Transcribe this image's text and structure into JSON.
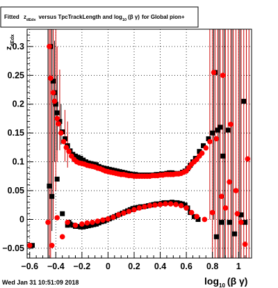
{
  "chart_data": {
    "type": "scatter",
    "title": {
      "text": "Fitted",
      "z_main": "z",
      "z_sub": "dEdx",
      "mid": "versus TpcTrackLength and log",
      "log_sub": "10",
      "paren": "(β γ)",
      "tail": "for Global pion+"
    },
    "xlabel": {
      "main": "log",
      "sub": "10",
      "paren": "(β γ)"
    },
    "ylabel": {
      "main": "z",
      "sub": "dEdx"
    },
    "timestamp": "Wed Jan 31 10:51:09 2018",
    "xlim": [
      -0.62,
      1.1
    ],
    "ylim": [
      -0.067,
      0.33
    ],
    "xticks": [
      -0.6,
      -0.4,
      -0.2,
      0,
      0.2,
      0.4,
      0.6,
      0.8,
      1
    ],
    "xtick_labels": [
      "−0.6",
      "−0.4",
      "−0.2",
      "0",
      "0.2",
      "0.4",
      "0.6",
      "0.8",
      "1"
    ],
    "yticks": [
      -0.05,
      0,
      0.05,
      0.1,
      0.15,
      0.2,
      0.25,
      0.3
    ],
    "ytick_labels": [
      "−0.05",
      "0",
      "0.05",
      "0.1",
      "0.15",
      "0.2",
      "0.25",
      "0.3"
    ],
    "grid": true,
    "colors": {
      "series_black": "#000000",
      "series_red": "#ff0000",
      "errorbar_red": "#cc0000"
    },
    "series": [
      {
        "marker": "square",
        "color": "#000000",
        "points": [
          [
            -0.44,
            0.3
          ],
          [
            -0.42,
            0.24
          ],
          [
            -0.41,
            0.22
          ],
          [
            -0.4,
            0.2
          ],
          [
            -0.39,
            0.185
          ],
          [
            -0.37,
            0.17
          ],
          [
            -0.35,
            0.152
          ],
          [
            -0.33,
            0.14
          ],
          [
            -0.31,
            0.128
          ],
          [
            -0.29,
            0.119
          ],
          [
            -0.27,
            0.113
          ],
          [
            -0.25,
            0.11
          ],
          [
            -0.23,
            0.108
          ],
          [
            -0.21,
            0.106
          ],
          [
            -0.19,
            0.103
          ],
          [
            -0.17,
            0.1
          ],
          [
            -0.15,
            0.098
          ],
          [
            -0.13,
            0.097
          ],
          [
            -0.11,
            0.096
          ],
          [
            -0.09,
            0.095
          ],
          [
            -0.07,
            0.092
          ],
          [
            -0.05,
            0.09
          ],
          [
            -0.03,
            0.089
          ],
          [
            -0.01,
            0.088
          ],
          [
            0.01,
            0.087
          ],
          [
            0.03,
            0.086
          ],
          [
            0.05,
            0.085
          ],
          [
            0.07,
            0.084
          ],
          [
            0.09,
            0.083
          ],
          [
            0.11,
            0.082
          ],
          [
            0.13,
            0.081
          ],
          [
            0.15,
            0.08
          ],
          [
            0.17,
            0.079
          ],
          [
            0.19,
            0.078
          ],
          [
            0.21,
            0.078
          ],
          [
            0.23,
            0.077
          ],
          [
            0.25,
            0.077
          ],
          [
            0.27,
            0.077
          ],
          [
            0.29,
            0.077
          ],
          [
            0.31,
            0.077
          ],
          [
            0.33,
            0.077
          ],
          [
            0.35,
            0.077
          ],
          [
            0.37,
            0.078
          ],
          [
            0.39,
            0.078
          ],
          [
            0.41,
            0.079
          ],
          [
            0.43,
            0.079
          ],
          [
            0.45,
            0.08
          ],
          [
            0.47,
            0.081
          ],
          [
            0.49,
            0.081
          ],
          [
            0.51,
            0.08
          ],
          [
            0.53,
            0.079
          ],
          [
            0.55,
            0.08
          ],
          [
            0.57,
            0.082
          ],
          [
            0.59,
            0.084
          ],
          [
            0.61,
            0.088
          ],
          [
            0.63,
            0.094
          ],
          [
            0.65,
            0.1
          ],
          [
            0.67,
            0.106
          ],
          [
            0.7,
            0.118
          ],
          [
            0.73,
            0.128
          ],
          [
            0.77,
            0.14
          ],
          [
            0.8,
            0.15
          ],
          [
            0.82,
            0.255
          ],
          [
            0.84,
            0.155
          ],
          [
            0.86,
            0.16
          ],
          [
            0.92,
            0.155
          ],
          [
            1.04,
            0.205
          ],
          [
            -0.43,
            0.04
          ],
          [
            -0.39,
            0.07
          ],
          [
            -0.35,
            0.01
          ],
          [
            -0.31,
            -0.01
          ],
          [
            -0.29,
            -0.008
          ],
          [
            -0.27,
            -0.01
          ],
          [
            -0.25,
            -0.012
          ],
          [
            -0.23,
            -0.012
          ],
          [
            -0.21,
            -0.013
          ],
          [
            -0.19,
            -0.013
          ],
          [
            -0.17,
            -0.012
          ],
          [
            -0.15,
            -0.011
          ],
          [
            -0.13,
            -0.01
          ],
          [
            -0.11,
            -0.009
          ],
          [
            -0.09,
            -0.008
          ],
          [
            -0.07,
            -0.006
          ],
          [
            -0.05,
            -0.004
          ],
          [
            -0.03,
            -0.003
          ],
          [
            -0.01,
            -0.001
          ],
          [
            0.01,
            0.001
          ],
          [
            0.03,
            0.003
          ],
          [
            0.05,
            0.005
          ],
          [
            0.07,
            0.007
          ],
          [
            0.09,
            0.009
          ],
          [
            0.11,
            0.011
          ],
          [
            0.13,
            0.013
          ],
          [
            0.15,
            0.015
          ],
          [
            0.17,
            0.017
          ],
          [
            0.19,
            0.019
          ],
          [
            0.21,
            0.02
          ],
          [
            0.23,
            0.021
          ],
          [
            0.25,
            0.022
          ],
          [
            0.27,
            0.022
          ],
          [
            0.29,
            0.023
          ],
          [
            0.31,
            0.024
          ],
          [
            0.33,
            0.025
          ],
          [
            0.35,
            0.026
          ],
          [
            0.37,
            0.027
          ],
          [
            0.39,
            0.027
          ],
          [
            0.41,
            0.028
          ],
          [
            0.43,
            0.029
          ],
          [
            0.45,
            0.029
          ],
          [
            0.47,
            0.029
          ],
          [
            0.49,
            0.03
          ],
          [
            0.51,
            0.029
          ],
          [
            0.53,
            0.029
          ],
          [
            0.55,
            0.028
          ],
          [
            0.57,
            0.027
          ],
          [
            0.59,
            0.025
          ],
          [
            0.61,
            0.02
          ],
          [
            0.63,
            0.012
          ],
          [
            0.66,
            0.005
          ],
          [
            0.69,
            0.0
          ],
          [
            -0.58,
            -0.045
          ],
          [
            -0.3,
            -0.005
          ],
          [
            0.83,
            -0.03
          ],
          [
            0.87,
            -0.005
          ],
          [
            0.93,
            -0.005
          ],
          [
            0.97,
            -0.025
          ],
          [
            1.02,
            0.008
          ],
          [
            1.05,
            -0.005
          ],
          [
            -0.45,
            0.058
          ],
          [
            0.88,
            0.11
          ]
        ]
      },
      {
        "marker": "circle",
        "color": "#ff0000",
        "points": [
          [
            -0.45,
            0.3
          ],
          [
            -0.44,
            0.245
          ],
          [
            -0.42,
            0.22
          ],
          [
            -0.41,
            0.205
          ],
          [
            -0.39,
            0.175
          ],
          [
            -0.38,
            0.166
          ],
          [
            -0.36,
            0.15
          ],
          [
            -0.34,
            0.135
          ],
          [
            -0.32,
            0.125
          ],
          [
            -0.3,
            0.118
          ],
          [
            -0.28,
            0.11
          ],
          [
            -0.26,
            0.104
          ],
          [
            -0.24,
            0.1
          ],
          [
            -0.22,
            0.098
          ],
          [
            -0.2,
            0.097
          ],
          [
            -0.18,
            0.096
          ],
          [
            -0.16,
            0.094
          ],
          [
            -0.14,
            0.093
          ],
          [
            -0.12,
            0.092
          ],
          [
            -0.1,
            0.091
          ],
          [
            -0.08,
            0.089
          ],
          [
            -0.06,
            0.088
          ],
          [
            -0.04,
            0.086
          ],
          [
            -0.02,
            0.084
          ],
          [
            0.0,
            0.083
          ],
          [
            0.02,
            0.082
          ],
          [
            0.04,
            0.081
          ],
          [
            0.06,
            0.08
          ],
          [
            0.08,
            0.079
          ],
          [
            0.1,
            0.078
          ],
          [
            0.12,
            0.078
          ],
          [
            0.14,
            0.077
          ],
          [
            0.16,
            0.076
          ],
          [
            0.18,
            0.076
          ],
          [
            0.2,
            0.075
          ],
          [
            0.22,
            0.075
          ],
          [
            0.24,
            0.075
          ],
          [
            0.26,
            0.075
          ],
          [
            0.28,
            0.075
          ],
          [
            0.3,
            0.075
          ],
          [
            0.32,
            0.075
          ],
          [
            0.34,
            0.076
          ],
          [
            0.36,
            0.076
          ],
          [
            0.38,
            0.076
          ],
          [
            0.4,
            0.077
          ],
          [
            0.42,
            0.077
          ],
          [
            0.44,
            0.078
          ],
          [
            0.46,
            0.078
          ],
          [
            0.48,
            0.078
          ],
          [
            0.5,
            0.078
          ],
          [
            0.52,
            0.079
          ],
          [
            0.54,
            0.079
          ],
          [
            0.56,
            0.08
          ],
          [
            0.58,
            0.082
          ],
          [
            0.6,
            0.084
          ],
          [
            0.62,
            0.09
          ],
          [
            0.64,
            0.096
          ],
          [
            0.66,
            0.1
          ],
          [
            0.68,
            0.104
          ],
          [
            0.7,
            0.11
          ],
          [
            0.72,
            0.115
          ],
          [
            0.75,
            0.124
          ],
          [
            0.78,
            0.135
          ],
          [
            0.81,
            0.255
          ],
          [
            0.83,
            0.14
          ],
          [
            0.88,
            0.25
          ],
          [
            0.94,
            0.165
          ],
          [
            -0.43,
            -0.045
          ],
          [
            -0.35,
            -0.03
          ],
          [
            -0.31,
            -0.005
          ],
          [
            -0.25,
            -0.01
          ],
          [
            -0.2,
            -0.008
          ],
          [
            -0.16,
            -0.006
          ],
          [
            -0.12,
            -0.005
          ],
          [
            -0.08,
            -0.003
          ],
          [
            -0.04,
            -0.001
          ],
          [
            0.0,
            0.001
          ],
          [
            0.04,
            0.004
          ],
          [
            0.08,
            0.008
          ],
          [
            0.12,
            0.011
          ],
          [
            0.16,
            0.014
          ],
          [
            0.2,
            0.017
          ],
          [
            0.24,
            0.02
          ],
          [
            0.28,
            0.022
          ],
          [
            0.32,
            0.024
          ],
          [
            0.36,
            0.025
          ],
          [
            0.4,
            0.026
          ],
          [
            0.44,
            0.027
          ],
          [
            0.48,
            0.027
          ],
          [
            0.52,
            0.026
          ],
          [
            0.56,
            0.024
          ],
          [
            0.6,
            0.02
          ],
          [
            0.64,
            0.012
          ],
          [
            0.68,
            0.005
          ],
          [
            0.74,
            0.0
          ],
          [
            -0.6,
            -0.045
          ],
          [
            -0.46,
            -0.005
          ],
          [
            -0.39,
            0.003
          ],
          [
            0.8,
            0.012
          ],
          [
            0.87,
            0.04
          ],
          [
            0.9,
            0.02
          ],
          [
            0.93,
            0.065
          ],
          [
            0.98,
            0.05
          ],
          [
            1.02,
            -0.005
          ],
          [
            1.07,
            0.105
          ],
          [
            1.05,
            -0.043
          ],
          [
            0.99,
            0.01
          ]
        ]
      }
    ],
    "errorbars_red": [
      {
        "x": -0.45,
        "lo": -0.067,
        "hi": 0.33
      },
      {
        "x": -0.44,
        "lo": -0.067,
        "hi": 0.33
      },
      {
        "x": -0.42,
        "lo": 0.0,
        "hi": 0.33
      },
      {
        "x": -0.4,
        "lo": 0.05,
        "hi": 0.33
      },
      {
        "x": -0.39,
        "lo": 0.1,
        "hi": 0.3
      },
      {
        "x": -0.37,
        "lo": 0.12,
        "hi": 0.26
      },
      {
        "x": -0.33,
        "lo": 0.1,
        "hi": 0.19
      },
      {
        "x": -0.31,
        "lo": 0.09,
        "hi": 0.17
      },
      {
        "x": 0.78,
        "lo": 0.0,
        "hi": 0.33
      },
      {
        "x": 0.8,
        "lo": -0.067,
        "hi": 0.33
      },
      {
        "x": 0.82,
        "lo": -0.067,
        "hi": 0.33
      },
      {
        "x": 0.84,
        "lo": -0.067,
        "hi": 0.33
      },
      {
        "x": 0.86,
        "lo": -0.067,
        "hi": 0.33
      },
      {
        "x": 0.88,
        "lo": -0.067,
        "hi": 0.33
      },
      {
        "x": 0.9,
        "lo": -0.067,
        "hi": 0.33
      },
      {
        "x": 0.92,
        "lo": -0.067,
        "hi": 0.33
      },
      {
        "x": 0.94,
        "lo": -0.067,
        "hi": 0.33
      },
      {
        "x": 0.96,
        "lo": -0.067,
        "hi": 0.33
      },
      {
        "x": 0.98,
        "lo": -0.067,
        "hi": 0.33
      },
      {
        "x": 1.0,
        "lo": -0.067,
        "hi": 0.33
      },
      {
        "x": 1.02,
        "lo": -0.067,
        "hi": 0.33
      },
      {
        "x": 1.04,
        "lo": -0.067,
        "hi": 0.33
      },
      {
        "x": 1.06,
        "lo": -0.067,
        "hi": 0.33
      },
      {
        "x": 1.08,
        "lo": -0.067,
        "hi": 0.33
      }
    ],
    "errorbars_black": [
      {
        "x": -0.46,
        "lo": -0.067,
        "hi": 0.33
      },
      {
        "x": -0.43,
        "lo": -0.02,
        "hi": 0.33
      },
      {
        "x": -0.41,
        "lo": 0.1,
        "hi": 0.31
      },
      {
        "x": -0.39,
        "lo": 0.12,
        "hi": 0.25
      },
      {
        "x": -0.36,
        "lo": 0.13,
        "hi": 0.2
      },
      {
        "x": 0.81,
        "lo": 0.0,
        "hi": 0.33
      },
      {
        "x": 0.85,
        "lo": -0.067,
        "hi": 0.33
      },
      {
        "x": 0.89,
        "lo": -0.067,
        "hi": 0.33
      },
      {
        "x": 0.95,
        "lo": -0.067,
        "hi": 0.33
      },
      {
        "x": 1.01,
        "lo": -0.067,
        "hi": 0.33
      }
    ]
  }
}
